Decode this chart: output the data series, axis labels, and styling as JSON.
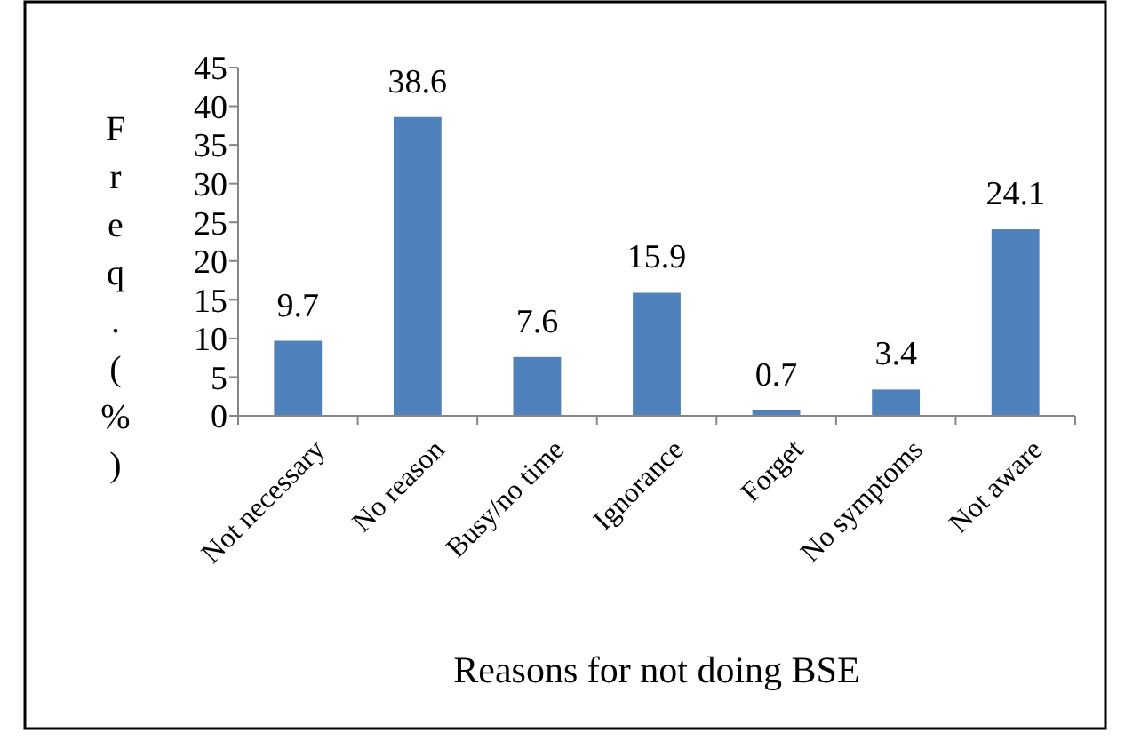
{
  "chart_data": {
    "type": "bar",
    "xlabel": "Reasons for not doing BSE",
    "ylabel": "Freq.(%)",
    "categories": [
      "Not necessary",
      "No reason",
      "Busy/no time",
      "Ignorance",
      "Forget",
      "No symptoms",
      "Not aware"
    ],
    "values": [
      9.7,
      38.6,
      7.6,
      15.9,
      0.7,
      3.4,
      24.1
    ],
    "color": "#4f81bd",
    "ylim": [
      0,
      45
    ],
    "yticks": [
      0,
      5,
      10,
      15,
      20,
      25,
      30,
      35,
      40,
      45
    ],
    "data_labels": true,
    "grid": false
  }
}
